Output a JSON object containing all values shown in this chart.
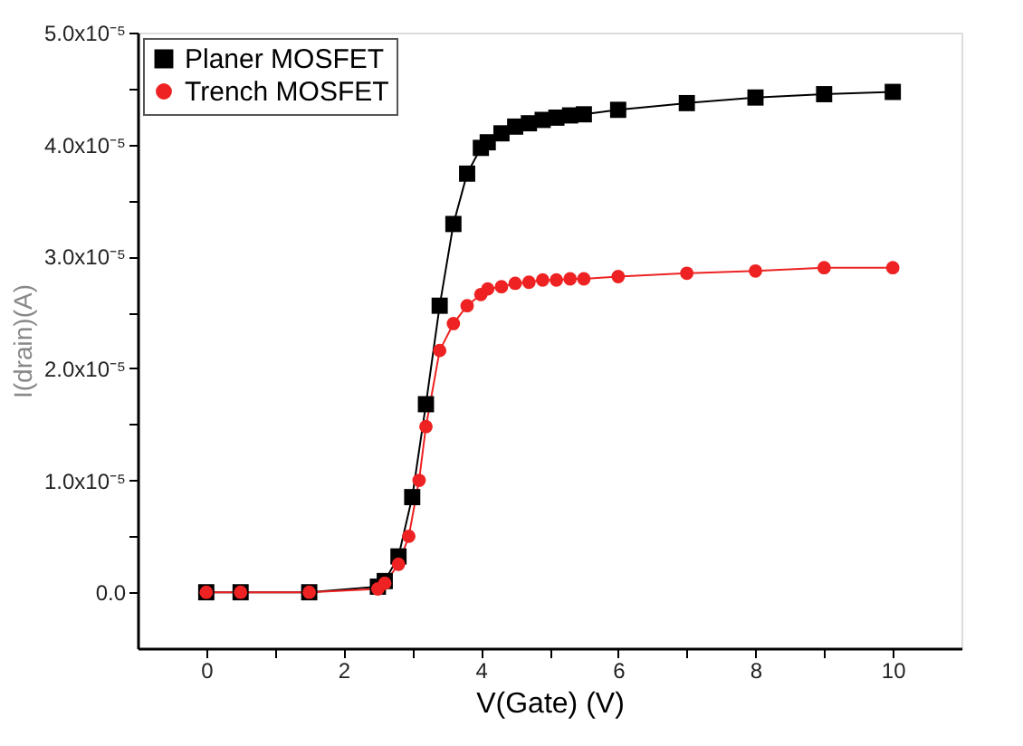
{
  "chart_data": {
    "type": "line",
    "xlabel": "V(Gate) (V)",
    "ylabel": "I(drain)(A)",
    "xlim": [
      -1,
      11
    ],
    "ylim": [
      -5e-06,
      5e-05
    ],
    "xticks": [
      0,
      {
        "value": 1,
        "label": null
      },
      2,
      {
        "value": 3,
        "label": null
      },
      4,
      {
        "value": 5,
        "label": null
      },
      6,
      {
        "value": 7,
        "label": null
      },
      8,
      {
        "value": 9,
        "label": null
      },
      10
    ],
    "yticks": [
      {
        "value": 0,
        "label": "0.0"
      },
      {
        "value": 5e-06,
        "label": null
      },
      {
        "value": 1e-05,
        "label": "1.0x10⁻⁵"
      },
      {
        "value": 1.5e-05,
        "label": null
      },
      {
        "value": 2e-05,
        "label": "2.0x10⁻⁵"
      },
      {
        "value": 2.5e-05,
        "label": null
      },
      {
        "value": 3e-05,
        "label": "3.0x10⁻⁵"
      },
      {
        "value": 3.5e-05,
        "label": null
      },
      {
        "value": 4e-05,
        "label": "4.0x10⁻⁵"
      },
      {
        "value": 4.5e-05,
        "label": null
      },
      {
        "value": 5e-05,
        "label": "5.0x10⁻⁵"
      }
    ],
    "legend": "top left",
    "grid": false,
    "line_style": "solid",
    "series": [
      {
        "name": "Planer MOSFET",
        "color": "#000000",
        "marker": "square",
        "x": [
          0,
          0.5,
          1.5,
          2.5,
          2.6,
          2.8,
          3.0,
          3.2,
          3.4,
          3.6,
          3.8,
          4.0,
          4.1,
          4.3,
          4.5,
          4.7,
          4.9,
          5.1,
          5.3,
          5.5,
          6,
          7,
          8,
          9,
          10
        ],
        "values": [
          0,
          0,
          0,
          5e-07,
          1e-06,
          3.2e-06,
          8.5e-06,
          1.68e-05,
          2.56e-05,
          3.29e-05,
          3.74e-05,
          3.97e-05,
          4.02e-05,
          4.1e-05,
          4.16e-05,
          4.19e-05,
          4.22e-05,
          4.24e-05,
          4.26e-05,
          4.27e-05,
          4.31e-05,
          4.37e-05,
          4.42e-05,
          4.45e-05,
          4.47e-05
        ]
      },
      {
        "name": "Trench MOSFET",
        "color": "#ee2222",
        "marker": "circle",
        "x": [
          0,
          0.5,
          1.5,
          2.5,
          2.6,
          2.8,
          2.95,
          3.1,
          3.2,
          3.4,
          3.6,
          3.8,
          4.0,
          4.1,
          4.3,
          4.5,
          4.7,
          4.9,
          5.1,
          5.3,
          5.5,
          6,
          7,
          8,
          9,
          10
        ],
        "values": [
          0,
          0,
          0,
          3e-07,
          8e-07,
          2.5e-06,
          5e-06,
          1e-05,
          1.48e-05,
          2.16e-05,
          2.4e-05,
          2.56e-05,
          2.66e-05,
          2.71e-05,
          2.73e-05,
          2.76e-05,
          2.77e-05,
          2.79e-05,
          2.79e-05,
          2.8e-05,
          2.8e-05,
          2.82e-05,
          2.85e-05,
          2.87e-05,
          2.9e-05,
          2.9e-05
        ]
      }
    ]
  }
}
